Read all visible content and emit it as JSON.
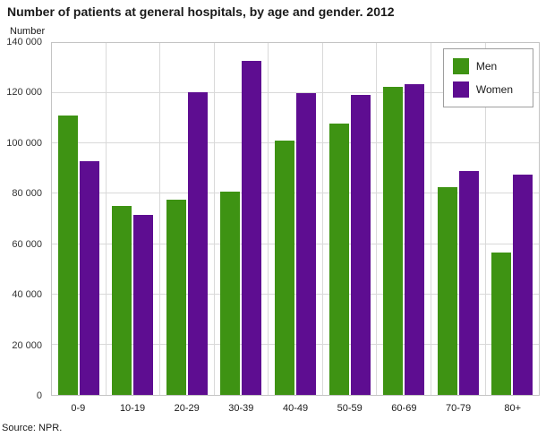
{
  "source": "Source: NPR.",
  "chart_data": {
    "type": "bar",
    "title": "Number of patients at general hospitals, by age and gender. 2012",
    "ylabel": "Number",
    "xlabel": "",
    "categories": [
      "0-9",
      "10-19",
      "20-29",
      "30-39",
      "40-49",
      "50-59",
      "60-69",
      "70-79",
      "80+"
    ],
    "series": [
      {
        "name": "Men",
        "color": "#3e9313",
        "values": [
          111000,
          75000,
          77500,
          81000,
          101000,
          108000,
          122500,
          82500,
          56500
        ]
      },
      {
        "name": "Women",
        "color": "#5e0d91",
        "values": [
          93000,
          71500,
          120500,
          133000,
          120000,
          119500,
          123500,
          89000,
          87500
        ]
      }
    ],
    "ylim": [
      0,
      140000
    ],
    "ytick_step": 20000,
    "ytick_labels": [
      "0",
      "20 000",
      "40 000",
      "60 000",
      "80 000",
      "100 000",
      "120 000",
      "140 000"
    ],
    "grid": true,
    "legend_position": "top-right"
  }
}
